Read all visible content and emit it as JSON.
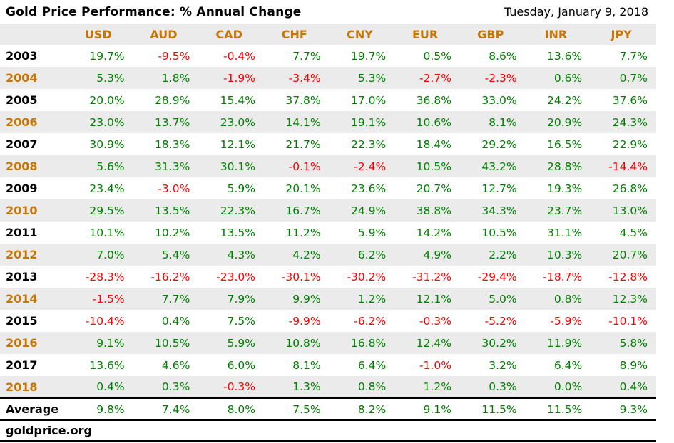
{
  "header": {
    "title": "Gold Price Performance: % Annual Change",
    "date": "Tuesday, January 9, 2018"
  },
  "footer": {
    "source": "goldprice.org"
  },
  "colors": {
    "positive_green": "#008000",
    "negative_red": "#fe0000",
    "accent_orange": "#c67605",
    "stripe_gray": "#ebebeb"
  },
  "chart_data": {
    "type": "table",
    "title": "Gold Price Performance: % Annual Change",
    "value_format": "percent_one_decimal",
    "columns": [
      "USD",
      "AUD",
      "CAD",
      "CHF",
      "CNY",
      "EUR",
      "GBP",
      "INR",
      "JPY"
    ],
    "row_labels": [
      "2003",
      "2004",
      "2005",
      "2006",
      "2007",
      "2008",
      "2009",
      "2010",
      "2011",
      "2012",
      "2013",
      "2014",
      "2015",
      "2016",
      "2017",
      "2018"
    ],
    "rows": [
      [
        19.7,
        -9.5,
        -0.4,
        7.7,
        19.7,
        0.5,
        8.6,
        13.6,
        7.7
      ],
      [
        5.3,
        1.8,
        -1.9,
        -3.4,
        5.3,
        -2.7,
        -2.3,
        0.6,
        0.7
      ],
      [
        20.0,
        28.9,
        15.4,
        37.8,
        17.0,
        36.8,
        33.0,
        24.2,
        37.6
      ],
      [
        23.0,
        13.7,
        23.0,
        14.1,
        19.1,
        10.6,
        8.1,
        20.9,
        24.3
      ],
      [
        30.9,
        18.3,
        12.1,
        21.7,
        22.3,
        18.4,
        29.2,
        16.5,
        22.9
      ],
      [
        5.6,
        31.3,
        30.1,
        -0.1,
        -2.4,
        10.5,
        43.2,
        28.8,
        -14.4
      ],
      [
        23.4,
        -3.0,
        5.9,
        20.1,
        23.6,
        20.7,
        12.7,
        19.3,
        26.8
      ],
      [
        29.5,
        13.5,
        22.3,
        16.7,
        24.9,
        38.8,
        34.3,
        23.7,
        13.0
      ],
      [
        10.1,
        10.2,
        13.5,
        11.2,
        5.9,
        14.2,
        10.5,
        31.1,
        4.5
      ],
      [
        7.0,
        5.4,
        4.3,
        4.2,
        6.2,
        4.9,
        2.2,
        10.3,
        20.7
      ],
      [
        -28.3,
        -16.2,
        -23.0,
        -30.1,
        -30.2,
        -31.2,
        -29.4,
        -18.7,
        -12.8
      ],
      [
        -1.5,
        7.7,
        7.9,
        9.9,
        1.2,
        12.1,
        5.0,
        0.8,
        12.3
      ],
      [
        -10.4,
        0.4,
        7.5,
        -9.9,
        -6.2,
        -0.3,
        -5.2,
        -5.9,
        -10.1
      ],
      [
        9.1,
        10.5,
        5.9,
        10.8,
        16.8,
        12.4,
        30.2,
        11.9,
        5.8
      ],
      [
        13.6,
        4.6,
        6.0,
        8.1,
        6.4,
        -1.0,
        3.2,
        6.4,
        8.9
      ],
      [
        0.4,
        0.3,
        -0.3,
        1.3,
        0.8,
        1.2,
        0.3,
        0.0,
        0.4
      ]
    ],
    "average_label": "Average",
    "average": [
      9.8,
      7.4,
      8.0,
      7.5,
      8.2,
      9.1,
      11.5,
      11.5,
      9.3
    ]
  }
}
